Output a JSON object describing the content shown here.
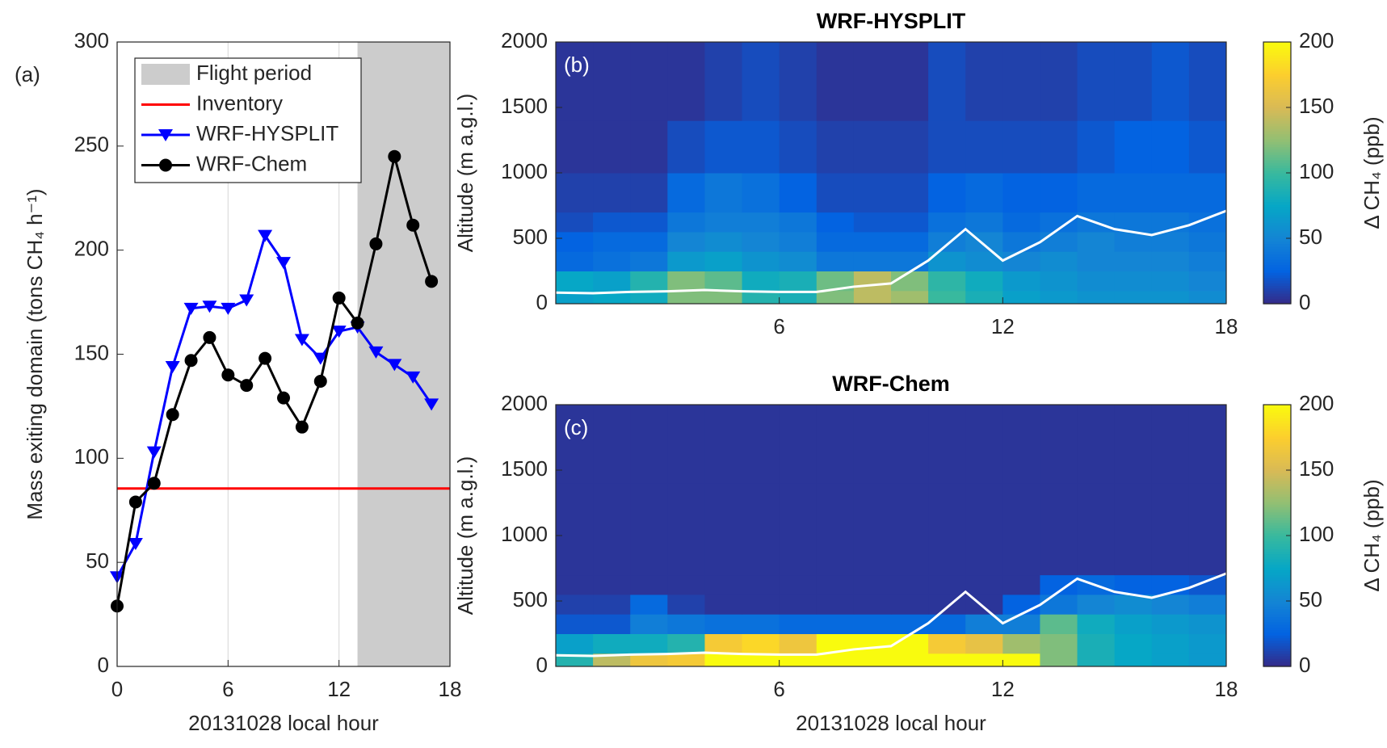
{
  "chart_data": [
    {
      "type": "line",
      "annotation": "(a)",
      "xlabel": "20131028 local hour",
      "ylabel": "Mass exiting domain (tons CH₄ h⁻¹)",
      "xlim": [
        0,
        18
      ],
      "xticks": [
        0,
        6,
        12,
        18
      ],
      "ylim": [
        0,
        300
      ],
      "yticks": [
        0,
        50,
        100,
        150,
        200,
        250,
        300
      ],
      "xgrid": true,
      "legend": "upper-left",
      "shading": {
        "name": "Flight period",
        "x": [
          13,
          18
        ],
        "color": "#cccccc"
      },
      "hline": {
        "name": "Inventory",
        "value": 85.5,
        "color": "#ff0000"
      },
      "x": [
        0,
        1,
        2,
        3,
        4,
        5,
        6,
        7,
        8,
        9,
        10,
        11,
        12,
        13,
        14,
        15,
        16,
        17
      ],
      "series": [
        {
          "name": "WRF-HYSPLIT",
          "color": "#0000ff",
          "marker": "triangle-down",
          "values": [
            43,
            59,
            103,
            144,
            172,
            173,
            172,
            176,
            207,
            194,
            157,
            148,
            161,
            163,
            151,
            145,
            139,
            126
          ]
        },
        {
          "name": "WRF-Chem",
          "color": "#000000",
          "marker": "circle",
          "values": [
            29,
            79,
            88,
            121,
            147,
            158,
            140,
            135,
            148,
            129,
            115,
            137,
            177,
            165,
            203,
            245,
            212,
            185
          ]
        }
      ]
    },
    {
      "type": "heatmap",
      "title": "WRF-HYSPLIT",
      "annotation": "(b)",
      "ylabel": "Altitude (m a.g.l.)",
      "xlim": [
        0,
        18
      ],
      "xticks": [
        6,
        12,
        18
      ],
      "ylim": [
        0,
        2000
      ],
      "yticks": [
        0,
        500,
        1000,
        1500,
        2000
      ],
      "x_edges": [
        0,
        1,
        2,
        3,
        4,
        5,
        6,
        7,
        8,
        9,
        10,
        11,
        12,
        13,
        14,
        15,
        16,
        17,
        18
      ],
      "y_edges": [
        0,
        100,
        250,
        400,
        550,
        700,
        1000,
        1400,
        2000
      ],
      "values": [
        [
          70,
          75,
          80,
          120,
          120,
          90,
          85,
          120,
          140,
          130,
          100,
          85,
          70,
          65,
          60,
          60,
          60,
          55
        ],
        [
          75,
          70,
          90,
          120,
          110,
          80,
          85,
          115,
          140,
          120,
          95,
          80,
          65,
          60,
          55,
          55,
          55,
          50
        ],
        [
          30,
          35,
          40,
          65,
          70,
          60,
          55,
          40,
          40,
          40,
          60,
          55,
          50,
          55,
          50,
          50,
          50,
          45
        ],
        [
          25,
          30,
          30,
          50,
          55,
          50,
          45,
          30,
          30,
          30,
          45,
          50,
          40,
          45,
          50,
          45,
          45,
          40
        ],
        [
          15,
          20,
          20,
          40,
          45,
          45,
          40,
          25,
          20,
          20,
          35,
          40,
          30,
          35,
          40,
          40,
          40,
          35
        ],
        [
          10,
          10,
          10,
          30,
          40,
          35,
          25,
          15,
          15,
          15,
          25,
          30,
          25,
          25,
          30,
          30,
          30,
          30
        ],
        [
          5,
          5,
          5,
          15,
          20,
          20,
          15,
          10,
          10,
          10,
          15,
          15,
          15,
          15,
          20,
          25,
          25,
          20
        ],
        [
          5,
          5,
          5,
          5,
          10,
          15,
          10,
          5,
          5,
          5,
          15,
          10,
          10,
          10,
          15,
          15,
          20,
          15
        ]
      ],
      "line": {
        "color": "#ffffff",
        "x": [
          0,
          1,
          2,
          3,
          4,
          5,
          6,
          7,
          8,
          9,
          10,
          11,
          12,
          13,
          14,
          15,
          16,
          17,
          18
        ],
        "values": [
          85,
          80,
          90,
          95,
          105,
          95,
          90,
          90,
          130,
          155,
          330,
          570,
          330,
          470,
          670,
          570,
          525,
          600,
          710
        ]
      },
      "colormap": [
        "#352a87",
        "#0363e1",
        "#1485d4",
        "#06a7c6",
        "#38b99e",
        "#92bf73",
        "#d9ba56",
        "#fcce2e",
        "#f9fb0e"
      ],
      "colorbar": {
        "label": "Δ CH₄ (ppb)",
        "lim": [
          0,
          200
        ],
        "ticks": [
          0,
          50,
          100,
          150,
          200
        ]
      }
    },
    {
      "type": "heatmap",
      "title": "WRF-Chem",
      "annotation": "(c)",
      "xlabel": "20131028 local hour",
      "ylabel": "Altitude (m a.g.l.)",
      "xlim": [
        0,
        18
      ],
      "xticks": [
        6,
        12,
        18
      ],
      "ylim": [
        0,
        2000
      ],
      "yticks": [
        0,
        500,
        1000,
        1500,
        2000
      ],
      "x_edges": [
        0,
        1,
        2,
        3,
        4,
        5,
        6,
        7,
        8,
        9,
        10,
        11,
        12,
        13,
        14,
        15,
        16,
        17,
        18
      ],
      "y_edges": [
        0,
        100,
        250,
        400,
        550,
        700,
        1000,
        1400,
        2000
      ],
      "values": [
        [
          90,
          140,
          165,
          170,
          200,
          200,
          200,
          200,
          200,
          200,
          200,
          200,
          200,
          120,
          85,
          75,
          70,
          65
        ],
        [
          70,
          80,
          80,
          90,
          170,
          180,
          165,
          200,
          200,
          200,
          170,
          160,
          130,
          120,
          85,
          75,
          70,
          65
        ],
        [
          20,
          20,
          45,
          40,
          35,
          35,
          30,
          30,
          30,
          30,
          30,
          45,
          45,
          110,
          80,
          70,
          65,
          60
        ],
        [
          10,
          10,
          30,
          10,
          5,
          5,
          5,
          5,
          5,
          5,
          5,
          5,
          25,
          40,
          50,
          55,
          50,
          45
        ],
        [
          5,
          5,
          5,
          5,
          5,
          5,
          5,
          5,
          5,
          5,
          5,
          5,
          5,
          25,
          30,
          25,
          25,
          20
        ],
        [
          5,
          5,
          5,
          5,
          5,
          5,
          5,
          5,
          5,
          5,
          5,
          5,
          5,
          5,
          5,
          5,
          5,
          5
        ],
        [
          5,
          5,
          5,
          5,
          5,
          5,
          5,
          5,
          5,
          5,
          5,
          5,
          5,
          5,
          5,
          5,
          5,
          5
        ],
        [
          5,
          5,
          5,
          5,
          5,
          5,
          5,
          5,
          5,
          5,
          5,
          5,
          5,
          5,
          5,
          5,
          5,
          5
        ]
      ],
      "line": {
        "color": "#ffffff",
        "x": [
          0,
          1,
          2,
          3,
          4,
          5,
          6,
          7,
          8,
          9,
          10,
          11,
          12,
          13,
          14,
          15,
          16,
          17,
          18
        ],
        "values": [
          85,
          80,
          90,
          95,
          105,
          95,
          90,
          90,
          130,
          155,
          330,
          570,
          330,
          470,
          670,
          570,
          525,
          600,
          710
        ]
      },
      "colormap": [
        "#352a87",
        "#0363e1",
        "#1485d4",
        "#06a7c6",
        "#38b99e",
        "#92bf73",
        "#d9ba56",
        "#fcce2e",
        "#f9fb0e"
      ],
      "colorbar": {
        "label": "Δ CH₄ (ppb)",
        "lim": [
          0,
          200
        ],
        "ticks": [
          0,
          50,
          100,
          150,
          200
        ]
      }
    }
  ]
}
